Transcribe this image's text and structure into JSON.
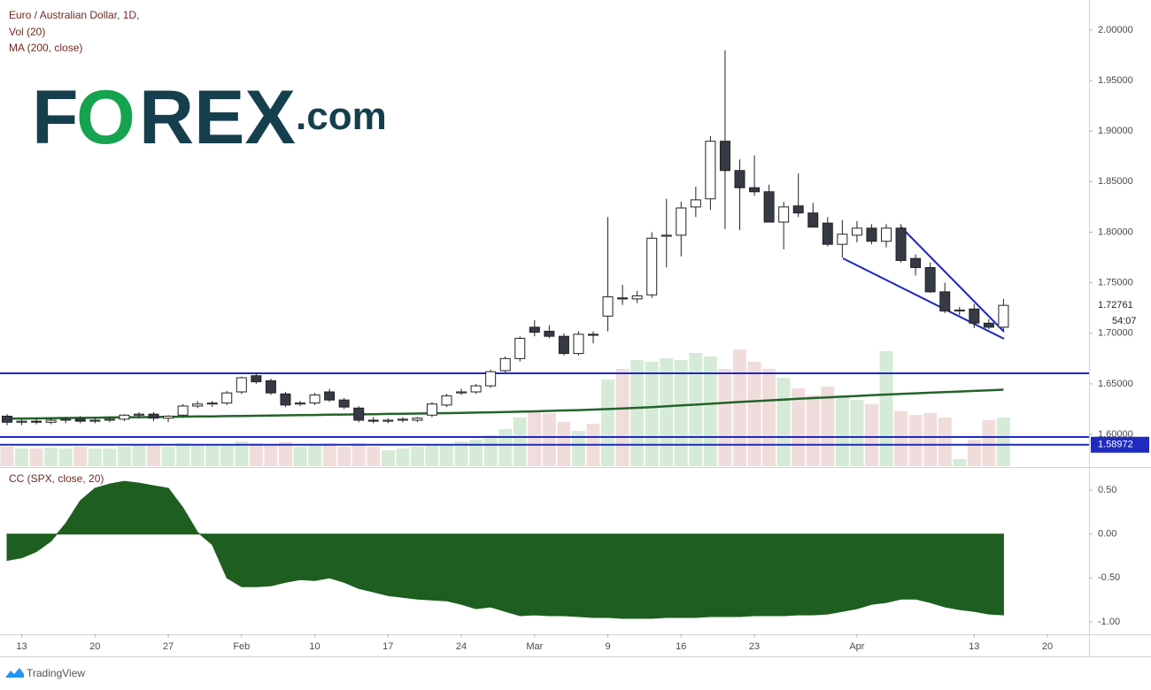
{
  "chart_data": [
    {
      "type": "candlestick",
      "title": "Euro / Australian Dollar, 1D,",
      "categories": [
        null,
        "13",
        null,
        null,
        null,
        null,
        "20",
        null,
        null,
        null,
        null,
        "27",
        null,
        null,
        null,
        null,
        "Feb",
        null,
        null,
        null,
        null,
        "10",
        null,
        null,
        null,
        null,
        "17",
        null,
        null,
        null,
        null,
        "24",
        null,
        null,
        null,
        null,
        "Mar",
        null,
        null,
        null,
        null,
        "9",
        null,
        null,
        null,
        null,
        "16",
        null,
        null,
        null,
        null,
        "23",
        null,
        null,
        null,
        null,
        null,
        null,
        "Apr",
        null,
        null,
        null,
        null,
        null,
        null,
        null,
        "13",
        null,
        null,
        null,
        null,
        "20"
      ],
      "open": [
        1.618,
        1.612,
        1.613,
        1.612,
        1.614,
        1.615,
        1.613,
        1.614,
        1.615,
        1.619,
        1.62,
        1.616,
        1.619,
        1.628,
        1.63,
        1.631,
        1.642,
        1.658,
        1.653,
        1.64,
        1.63,
        1.631,
        1.642,
        1.634,
        1.626,
        1.614,
        1.613,
        1.614,
        1.614,
        1.619,
        1.629,
        1.641,
        1.642,
        1.648,
        1.663,
        1.675,
        1.706,
        1.702,
        1.697,
        1.68,
        1.699,
        1.717,
        1.735,
        1.734,
        1.738,
        1.796,
        1.797,
        1.825,
        1.833,
        1.89,
        1.861,
        1.844,
        1.84,
        1.81,
        1.826,
        1.819,
        1.809,
        1.788,
        1.797,
        1.804,
        1.791,
        1.804,
        1.774,
        1.765,
        1.741,
        1.722,
        1.724,
        1.71,
        1.706,
        null,
        null,
        null
      ],
      "high": [
        1.62,
        1.615,
        1.616,
        1.616,
        1.617,
        1.618,
        1.616,
        1.617,
        1.62,
        1.622,
        1.622,
        1.619,
        1.63,
        1.633,
        1.633,
        1.643,
        1.657,
        1.661,
        1.655,
        1.642,
        1.633,
        1.641,
        1.645,
        1.636,
        1.628,
        1.617,
        1.616,
        1.617,
        1.617,
        1.632,
        1.64,
        1.645,
        1.65,
        1.664,
        1.677,
        1.697,
        1.713,
        1.708,
        1.7,
        1.702,
        1.702,
        1.815,
        1.748,
        1.742,
        1.8,
        1.833,
        1.83,
        1.845,
        1.895,
        1.98,
        1.872,
        1.876,
        1.847,
        1.83,
        1.858,
        1.829,
        1.815,
        1.812,
        1.811,
        1.808,
        1.808,
        1.808,
        1.778,
        1.77,
        1.75,
        1.726,
        1.729,
        1.714,
        1.734,
        null,
        null,
        null
      ],
      "low": [
        1.609,
        1.609,
        1.61,
        1.61,
        1.611,
        1.611,
        1.611,
        1.612,
        1.613,
        1.616,
        1.613,
        1.612,
        1.617,
        1.626,
        1.627,
        1.629,
        1.64,
        1.65,
        1.639,
        1.627,
        1.628,
        1.629,
        1.632,
        1.625,
        1.612,
        1.611,
        1.611,
        1.612,
        1.612,
        1.617,
        1.627,
        1.639,
        1.64,
        1.646,
        1.661,
        1.672,
        1.697,
        1.695,
        1.678,
        1.678,
        1.69,
        1.702,
        1.728,
        1.73,
        1.735,
        1.765,
        1.776,
        1.815,
        1.822,
        1.803,
        1.802,
        1.836,
        1.81,
        1.783,
        1.815,
        1.805,
        1.786,
        1.775,
        1.79,
        1.788,
        1.785,
        1.77,
        1.757,
        1.74,
        1.72,
        1.718,
        1.705,
        1.704,
        1.703,
        null,
        null,
        null
      ],
      "close": [
        1.612,
        1.613,
        1.612,
        1.614,
        1.615,
        1.613,
        1.614,
        1.615,
        1.619,
        1.62,
        1.616,
        1.618,
        1.628,
        1.63,
        1.631,
        1.641,
        1.656,
        1.652,
        1.641,
        1.629,
        1.631,
        1.639,
        1.634,
        1.627,
        1.614,
        1.613,
        1.614,
        1.615,
        1.616,
        1.63,
        1.638,
        1.642,
        1.648,
        1.662,
        1.675,
        1.695,
        1.701,
        1.697,
        1.68,
        1.699,
        1.698,
        1.736,
        1.734,
        1.737,
        1.794,
        1.797,
        1.824,
        1.832,
        1.89,
        1.861,
        1.844,
        1.84,
        1.81,
        1.825,
        1.819,
        1.805,
        1.788,
        1.798,
        1.804,
        1.791,
        1.804,
        1.772,
        1.765,
        1.741,
        1.722,
        1.723,
        1.71,
        1.706,
        1.72761,
        null,
        null,
        null
      ],
      "up_color": "#ffffff",
      "down_color": "#363a45",
      "wick_color": "#222222",
      "series": [
        {
          "name": "Vol (20)",
          "type": "volume",
          "up_color": "#d6ebd7",
          "down_color": "#f1dcdc",
          "values": [
            22,
            20,
            20,
            21,
            20,
            22,
            20,
            20,
            22,
            24,
            23,
            22,
            26,
            25,
            24,
            25,
            28,
            26,
            25,
            27,
            22,
            24,
            26,
            22,
            26,
            22,
            18,
            20,
            22,
            25,
            24,
            28,
            30,
            35,
            42,
            55,
            62,
            60,
            50,
            40,
            48,
            98,
            110,
            120,
            118,
            122,
            120,
            128,
            124,
            110,
            132,
            118,
            110,
            100,
            88,
            80,
            90,
            80,
            75,
            70,
            130,
            62,
            58,
            60,
            55,
            8,
            30,
            52,
            55,
            null,
            null,
            null
          ]
        },
        {
          "name": "MA (200, close)",
          "type": "line",
          "color": "#23632b",
          "values": [
            1.6155,
            1.6157,
            1.6158,
            1.616,
            1.6162,
            1.6163,
            1.6165,
            1.6167,
            1.6168,
            1.617,
            1.6172,
            1.6173,
            1.6175,
            1.6177,
            1.6178,
            1.618,
            1.6182,
            1.6184,
            1.6186,
            1.6188,
            1.619,
            1.6192,
            1.6194,
            1.6196,
            1.6198,
            1.62,
            1.6202,
            1.6204,
            1.6206,
            1.6208,
            1.621,
            1.6212,
            1.6215,
            1.6218,
            1.6221,
            1.6224,
            1.6228,
            1.6232,
            1.6236,
            1.624,
            1.6245,
            1.625,
            1.6256,
            1.6263,
            1.627,
            1.6278,
            1.6286,
            1.6294,
            1.6303,
            1.6312,
            1.632,
            1.6328,
            1.6336,
            1.6344,
            1.6352,
            1.6359,
            1.6366,
            1.6373,
            1.638,
            1.6387,
            1.6394,
            1.64,
            1.6406,
            1.6412,
            1.6418,
            1.6424,
            1.643,
            1.6436,
            1.6442,
            null,
            null,
            null
          ]
        }
      ],
      "ylim": [
        1.5685,
        2.0297
      ],
      "yticks": [
        {
          "value": 1.6,
          "label": "1.60000"
        },
        {
          "value": 1.65,
          "label": "1.65000"
        },
        {
          "value": 1.7,
          "label": "1.70000"
        },
        {
          "value": 1.75,
          "label": "1.75000"
        },
        {
          "value": 1.8,
          "label": "1.80000"
        },
        {
          "value": 1.85,
          "label": "1.85000"
        },
        {
          "value": 1.9,
          "label": "1.90000"
        },
        {
          "value": 1.95,
          "label": "1.95000"
        },
        {
          "value": 2,
          "label": "2.00000"
        }
      ],
      "countdown": "54:07",
      "price_line": 1.58972,
      "price_line_color": "#1e2bbd"
    },
    {
      "type": "area",
      "title": "CC (SPX, close, 20)",
      "color": "#1e5e20",
      "values": [
        -0.3,
        -0.27,
        -0.2,
        -0.08,
        0.12,
        0.38,
        0.52,
        0.57,
        0.6,
        0.58,
        0.55,
        0.52,
        0.3,
        0.02,
        -0.12,
        -0.5,
        -0.6,
        -0.6,
        -0.59,
        -0.55,
        -0.52,
        -0.53,
        -0.5,
        -0.55,
        -0.62,
        -0.66,
        -0.7,
        -0.72,
        -0.74,
        -0.75,
        -0.76,
        -0.8,
        -0.85,
        -0.83,
        -0.88,
        -0.93,
        -0.92,
        -0.93,
        -0.93,
        -0.94,
        -0.95,
        -0.95,
        -0.96,
        -0.96,
        -0.96,
        -0.95,
        -0.95,
        -0.95,
        -0.94,
        -0.94,
        -0.94,
        -0.93,
        -0.93,
        -0.93,
        -0.92,
        -0.92,
        -0.91,
        -0.88,
        -0.85,
        -0.8,
        -0.78,
        -0.74,
        -0.74,
        -0.78,
        -0.83,
        -0.86,
        -0.88,
        -0.91,
        -0.92,
        null,
        null,
        null
      ],
      "ylim": [
        -1.141,
        0.742
      ],
      "yticks": [
        {
          "value": 0.5,
          "label": "0.50"
        },
        {
          "value": 0,
          "label": "0.00"
        },
        {
          "value": -0.5,
          "label": "-0.50"
        },
        {
          "value": -1,
          "label": "-1.00"
        }
      ]
    }
  ],
  "logo": [
    "F",
    "O",
    "REX",
    ".com"
  ],
  "footer": "TradingView"
}
